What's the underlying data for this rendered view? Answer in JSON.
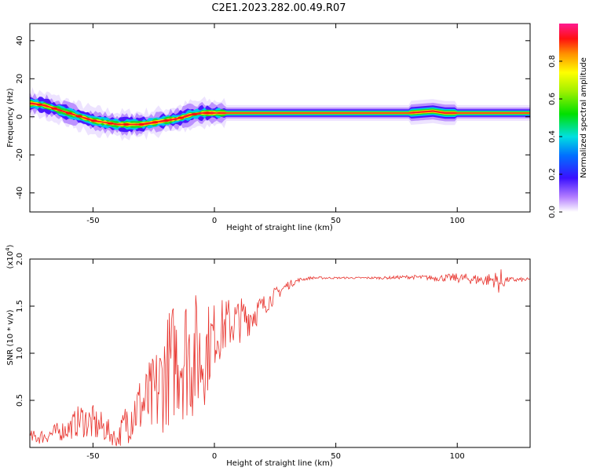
{
  "title": "C2E1.2023.282.00.49.R07",
  "chart_data": [
    {
      "type": "heatmap",
      "xlabel": "Height of straight line (km)",
      "ylabel": "Frequency (Hz)",
      "xlim": [
        -76,
        130
      ],
      "ylim": [
        -50,
        49
      ],
      "xticks": [
        -50,
        0,
        50,
        100
      ],
      "yticks": [
        -40,
        -20,
        0,
        20,
        40
      ],
      "ridge": {
        "x": [
          -75,
          -70,
          -65,
          -60,
          -55,
          -50,
          -45,
          -40,
          -35,
          -30,
          -25,
          -20,
          -15,
          -10,
          -5,
          0,
          5,
          10,
          30,
          50,
          70,
          80,
          90,
          95,
          100,
          110,
          120,
          130
        ],
        "frequency": [
          7,
          6,
          4,
          2,
          0,
          -2,
          -3,
          -4,
          -4,
          -4,
          -3,
          -2,
          -1,
          1,
          2,
          2,
          2,
          2,
          2,
          2,
          2,
          2,
          3,
          2,
          2,
          2,
          2,
          2
        ]
      },
      "colorbar": {
        "label": "Normalized spectral amplitude",
        "range": [
          0,
          1
        ],
        "ticks": [
          "0.0",
          "0.2",
          "0.4",
          "0.6",
          "0.8"
        ]
      }
    },
    {
      "type": "line",
      "xlabel": "Height of straight line (km)",
      "ylabel": "SNR (10 * v/v)",
      "scale_label": "(x10",
      "scale_exp": "4",
      "scale_close": ")",
      "xlim": [
        -76,
        130
      ],
      "ylim": [
        0,
        2.0
      ],
      "xticks": [
        -50,
        0,
        50,
        100
      ],
      "yticks": [
        "0.5",
        "1.0",
        "1.5",
        "2.0"
      ],
      "color": "#e8352f",
      "envelope": {
        "x": [
          -76,
          -70,
          -60,
          -55,
          -50,
          -45,
          -40,
          -35,
          -30,
          -25,
          -20,
          -15,
          -10,
          -5,
          0,
          5,
          10,
          15,
          20,
          25,
          30,
          35,
          40,
          50,
          60,
          70,
          80,
          90,
          100,
          110,
          115,
          118,
          120,
          130
        ],
        "center": [
          0.1,
          0.12,
          0.2,
          0.3,
          0.25,
          0.2,
          0.08,
          0.35,
          0.45,
          0.5,
          0.8,
          1.0,
          1.0,
          0.95,
          1.2,
          1.3,
          1.35,
          1.4,
          1.5,
          1.62,
          1.72,
          1.78,
          1.8,
          1.8,
          1.8,
          1.8,
          1.81,
          1.8,
          1.8,
          1.78,
          1.78,
          1.75,
          1.78,
          1.78
        ],
        "amplitude": [
          0.08,
          0.08,
          0.12,
          0.18,
          0.2,
          0.15,
          0.08,
          0.3,
          0.35,
          0.5,
          0.6,
          0.7,
          0.75,
          0.6,
          0.35,
          0.3,
          0.25,
          0.2,
          0.12,
          0.08,
          0.05,
          0.02,
          0.015,
          0.01,
          0.01,
          0.015,
          0.02,
          0.03,
          0.05,
          0.06,
          0.08,
          0.15,
          0.03,
          0.02
        ]
      }
    }
  ]
}
